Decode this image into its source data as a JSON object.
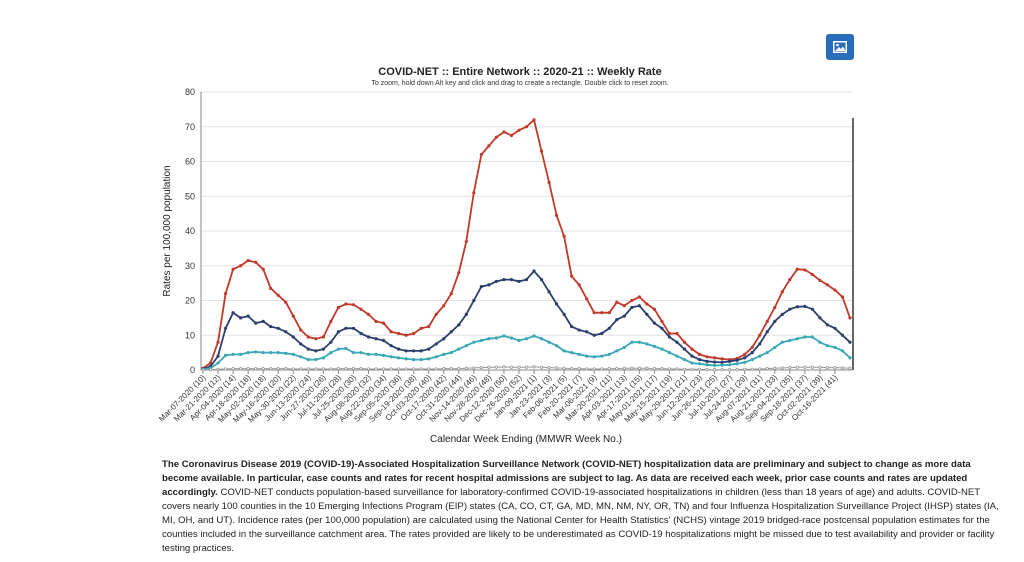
{
  "toolbar": {
    "image_button_icon": "image-icon"
  },
  "chart_data": {
    "type": "line",
    "title": "COVID-NET :: Entire Network :: 2020-21 :: Weekly Rate",
    "subtitle": "To zoom, hold down Alt key and click and drag to create a rectangle. Double click to reset zoom.",
    "xlabel": "Calendar Week Ending (MMWR Week No.)",
    "ylabel": "Rates per 100,000 population",
    "ylim": [
      0,
      80
    ],
    "yticks": [
      0,
      10,
      20,
      30,
      40,
      50,
      60,
      70,
      80
    ],
    "grid": true,
    "x_tick_labels": [
      "Mar-07-2020 (10)",
      "Mar-21-2020 (12)",
      "Apr-04-2020 (14)",
      "Apr-18-2020 (16)",
      "May-02-2020 (18)",
      "May-16-2020 (20)",
      "May-30-2020 (22)",
      "Jun-13-2020 (24)",
      "Jun-27-2020 (26)",
      "Jul-11-2020 (28)",
      "Jul-25-2020 (30)",
      "Aug-08-2020 (32)",
      "Aug-22-2020 (34)",
      "Sep-05-2020 (36)",
      "Sep-19-2020 (38)",
      "Oct-03-2020 (40)",
      "Oct-17-2020 (42)",
      "Oct-31-2020 (44)",
      "Nov-14-2020 (46)",
      "Nov-28-2020 (48)",
      "Dec-12-2020 (50)",
      "Dec-26-2020 (52)",
      "Jan-09-2021 (1)",
      "Jan-23-2021 (3)",
      "Feb-06-2021 (5)",
      "Feb-20-2021 (7)",
      "Mar-06-2021 (9)",
      "Mar-20-2021 (11)",
      "Apr-03-2021 (13)",
      "Apr-17-2021 (15)",
      "May-01-2021 (17)",
      "May-15-2021 (19)",
      "May-29-2021 (21)",
      "Jun-12-2021 (23)",
      "Jun-26-2021 (25)",
      "Jul-10-2021 (27)",
      "Jul-24-2021 (29)",
      "Aug-07-2021 (31)",
      "Aug-21-2021 (33)",
      "Sep-04-2021 (35)",
      "Sep-18-2021 (37)",
      "Oct-02-2021 (39)",
      "Oct-16-2021 (41)"
    ],
    "series": [
      {
        "color": "#c0392b",
        "values": [
          0.5,
          2,
          8,
          22,
          29,
          30,
          31.5,
          31,
          29,
          23.5,
          21.5,
          19.5,
          15.5,
          11.5,
          9.5,
          9,
          9.5,
          14,
          18,
          19,
          18.8,
          17.5,
          16,
          14,
          13.5,
          11,
          10.5,
          10,
          10.5,
          12,
          12.5,
          16,
          18.5,
          22,
          28,
          37,
          51,
          62,
          64.5,
          67,
          68.5,
          67.5,
          69,
          70,
          72,
          63,
          54,
          44.5,
          38.5,
          27,
          24.5,
          20.5,
          16.5,
          16.5,
          16.5,
          19.5,
          18.5,
          20,
          21,
          19,
          17.5,
          14,
          10.5,
          10.5,
          8,
          6,
          4.5,
          3.8,
          3.5,
          3.2,
          3,
          3.3,
          4.5,
          6.5,
          10,
          14,
          18,
          22.5,
          26,
          29,
          28.8,
          27.5,
          25.8,
          24.5,
          23,
          21,
          15
        ]
      },
      {
        "color": "#2c3e6b",
        "values": [
          0.3,
          1,
          4,
          12,
          16.5,
          15,
          15.5,
          13.5,
          14,
          12.5,
          12,
          11,
          9.5,
          7.5,
          6,
          5.5,
          6,
          8,
          11,
          12,
          12,
          10.5,
          9.5,
          9,
          8.5,
          7,
          6,
          5.5,
          5.5,
          5.5,
          6,
          7.5,
          9,
          11,
          13,
          16,
          20,
          24,
          24.5,
          25.5,
          26,
          26,
          25.5,
          26,
          28.5,
          26,
          22.5,
          19,
          16,
          12.5,
          11.5,
          11,
          10,
          10.5,
          12,
          14.5,
          15.5,
          18,
          18.5,
          16,
          13.5,
          12,
          9.5,
          8,
          6,
          4,
          3,
          2.5,
          2.3,
          2.2,
          2.5,
          2.8,
          3.5,
          5,
          7.5,
          11,
          14,
          16,
          17.5,
          18.2,
          18.3,
          17.5,
          15,
          13,
          12,
          10,
          8
        ]
      },
      {
        "color": "#3aa7b5",
        "values": [
          0.2,
          0.5,
          2,
          4.2,
          4.5,
          4.5,
          5,
          5.2,
          5,
          5,
          5,
          4.8,
          4.5,
          3.8,
          3,
          3,
          3.5,
          5,
          6,
          6.2,
          5,
          5,
          4.5,
          4.5,
          4.2,
          3.8,
          3.5,
          3.2,
          3,
          3,
          3.2,
          3.8,
          4.5,
          5,
          6,
          7,
          8,
          8.5,
          9,
          9.2,
          9.8,
          9.2,
          8.5,
          9,
          9.8,
          9,
          8,
          7,
          5.5,
          5,
          4.5,
          4,
          3.8,
          4,
          4.5,
          5.5,
          6.5,
          8,
          8,
          7.5,
          6.8,
          6,
          5,
          4,
          3,
          2,
          1.8,
          1.5,
          1.3,
          1.4,
          1.5,
          1.8,
          2.2,
          3,
          4,
          5,
          6.5,
          8,
          8.5,
          9,
          9.5,
          9.5,
          8,
          7,
          6.5,
          5.5,
          3.5
        ]
      },
      {
        "color": "#999999",
        "values": [
          0,
          0.1,
          0.2,
          0.3,
          0.4,
          0.4,
          0.4,
          0.4,
          0.4,
          0.4,
          0.4,
          0.4,
          0.3,
          0.3,
          0.3,
          0.3,
          0.3,
          0.3,
          0.4,
          0.4,
          0.4,
          0.4,
          0.3,
          0.3,
          0.3,
          0.3,
          0.3,
          0.3,
          0.3,
          0.3,
          0.3,
          0.3,
          0.4,
          0.4,
          0.4,
          0.5,
          0.6,
          0.7,
          0.8,
          0.8,
          0.9,
          0.8,
          0.8,
          0.8,
          0.9,
          0.8,
          0.7,
          0.6,
          0.5,
          0.4,
          0.4,
          0.3,
          0.3,
          0.3,
          0.4,
          0.4,
          0.5,
          0.5,
          0.5,
          0.5,
          0.4,
          0.4,
          0.3,
          0.3,
          0.2,
          0.2,
          0.2,
          0.1,
          0.1,
          0.1,
          0.1,
          0.1,
          0.2,
          0.2,
          0.3,
          0.4,
          0.5,
          0.6,
          0.7,
          0.8,
          0.8,
          0.8,
          0.8,
          0.7,
          0.7,
          0.6,
          0.5
        ]
      }
    ]
  },
  "description": {
    "bold_text": "The Coronavirus Disease 2019 (COVID-19)-Associated Hospitalization Surveillance Network (COVID-NET) hospitalization data are preliminary and subject to change as more data become available. In particular, case counts and rates for recent hospital admissions are subject to lag. As data are received each week, prior case counts and rates are updated accordingly.",
    "regular_text": " COVID-NET conducts population-based surveillance for laboratory-confirmed COVID-19-associated hospitalizations in children (less than 18 years of age) and adults. COVID-NET covers nearly 100 counties in the 10 Emerging Infections Program (EIP) states (CA, CO, CT, GA, MD, MN, NM, NY, OR, TN) and four Influenza Hospitalization Surveillance Project (IHSP) states (IA, MI, OH, and UT). Incidence rates (per 100,000 population) are calculated using the National Center for Health Statistics' (NCHS) vintage 2019 bridged-race postcensal population estimates for the counties included in the surveillance catchment area. The rates provided are likely to be underestimated as COVID-19 hospitalizations might be missed due to test availability and provider or facility testing practices."
  }
}
